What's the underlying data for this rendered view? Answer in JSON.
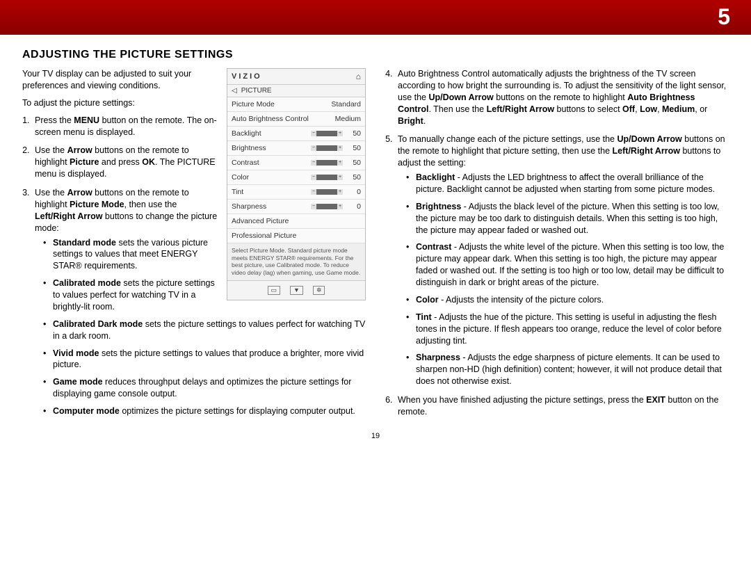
{
  "banner": {
    "chapter_number": "5"
  },
  "page_number": "19",
  "title": "ADJUSTING THE PICTURE SETTINGS",
  "left": {
    "intro": "Your TV display can be adjusted to suit your preferences and viewing conditions.",
    "lead": "To adjust the picture settings:",
    "step1": {
      "pre": "Press the ",
      "b1": "MENU",
      "post": " button on the remote. The on-screen menu is displayed."
    },
    "step2": {
      "pre": "Use the ",
      "b1": "Arrow",
      "mid": " buttons on the remote to highlight ",
      "b2": "Picture",
      "mid2": " and press ",
      "b3": "OK",
      "post": ". The PICTURE menu is displayed."
    },
    "step3": {
      "pre": "Use the ",
      "b1": "Arrow",
      "mid": " buttons on the remote to highlight ",
      "b2": "Picture Mode",
      "mid2": ", then use the ",
      "b3": "Left/Right Arrow",
      "post": " buttons to change the picture mode:"
    },
    "modes": {
      "standard": {
        "b": "Standard mode",
        "t": " sets the various picture settings to values that meet ENERGY STAR® requirements."
      },
      "calibrated": {
        "b": "Calibrated mode",
        "t": " sets the picture settings to values perfect for watching TV in a brightly-lit room."
      },
      "calibrated_dark": {
        "b": "Calibrated Dark mode",
        "t": " sets the picture settings to values perfect for watching TV in a dark room."
      },
      "vivid": {
        "b": "Vivid mode",
        "t": " sets the picture settings to values that produce a brighter, more vivid picture."
      },
      "game": {
        "b": "Game mode",
        "t": " reduces throughput delays and optimizes the picture settings for displaying game console output."
      },
      "computer": {
        "b": "Computer mode",
        "t": " optimizes the picture settings for displaying computer output."
      }
    }
  },
  "right": {
    "step4": {
      "t1": "Auto Brightness Control automatically adjusts the brightness of the TV screen according to how bright the surrounding is. To adjust the sensitivity of the light sensor, use the ",
      "b1": "Up/Down Arrow",
      "t2": " buttons on the remote to highlight ",
      "b2": "Auto Brightness Control",
      "t3": ". Then use the ",
      "b3": "Left/Right Arrow",
      "t4": " buttons to select ",
      "b4": "Off",
      "t5": ", ",
      "b5": "Low",
      "t6": ", ",
      "b6": "Medium",
      "t7": ", or ",
      "b7": "Bright",
      "t8": "."
    },
    "step5": {
      "t1": "To manually change each of the picture settings, use the ",
      "b1": "Up/Down Arrow",
      "t2": " buttons on the remote to highlight that picture setting, then use the ",
      "b2": "Left/Right Arrow",
      "t3": " buttons to adjust the setting:"
    },
    "settings": {
      "backlight": {
        "b": "Backlight",
        "t": " - Adjusts the LED brightness to affect the overall brilliance of the picture. Backlight cannot be adjusted when starting from some picture modes."
      },
      "brightness": {
        "b": "Brightness",
        "t": " - Adjusts the black level of the picture. When this setting is too low, the picture may be too dark to distinguish details. When this setting is too high, the picture may appear faded or washed out."
      },
      "contrast": {
        "b": "Contrast",
        "t": " - Adjusts the white level of the picture. When this setting is too low, the picture may appear dark. When this setting is too high, the picture may appear faded or washed out. If the setting is too high or too low, detail may be difficult to distinguish in dark or bright areas of the picture."
      },
      "color": {
        "b": "Color",
        "t": " - Adjusts the intensity of the picture colors."
      },
      "tint": {
        "b": "Tint",
        "t": " - Adjusts the hue of the picture. This setting is useful in adjusting the flesh tones in the picture. If flesh appears too orange, reduce the level of color before adjusting tint."
      },
      "sharpness": {
        "b": "Sharpness",
        "t": " - Adjusts the edge sharpness of picture elements. It can be used to sharpen non-HD (high definition) content; however, it will not produce detail that does not otherwise exist."
      }
    },
    "step6": {
      "t1": "When you have finished adjusting the picture settings, press the ",
      "b1": "EXIT",
      "t2": " button on the remote."
    }
  },
  "osd": {
    "logo": "VIZIO",
    "home_icon": "⌂",
    "back_icon": "◁",
    "section": "PICTURE",
    "rows": {
      "picture_mode": {
        "label": "Picture Mode",
        "value": "Standard"
      },
      "auto_brightness": {
        "label": "Auto Brightness Control",
        "value": "Medium"
      },
      "backlight": {
        "label": "Backlight",
        "value": "50",
        "fill_pct": 50
      },
      "brightness": {
        "label": "Brightness",
        "value": "50",
        "fill_pct": 50
      },
      "contrast": {
        "label": "Contrast",
        "value": "50",
        "fill_pct": 50
      },
      "color": {
        "label": "Color",
        "value": "50",
        "fill_pct": 50
      },
      "tint": {
        "label": "Tint",
        "value": "0",
        "fill_pct": 50
      },
      "sharpness": {
        "label": "Sharpness",
        "value": "0",
        "fill_pct": 0
      },
      "advanced": {
        "label": "Advanced Picture"
      },
      "professional": {
        "label": "Professional Picture"
      }
    },
    "help": "Select Picture Mode. Standard picture mode meets ENERGY STAR® requirements. For the best picture, use Calibrated mode. To reduce video delay (lag) when gaming, use Game mode.",
    "footer_icons": {
      "wide": "▭",
      "down": "▼",
      "gear": "✲"
    }
  },
  "colors": {
    "banner_top": "#b00000",
    "banner_bottom": "#8a0000",
    "osd_border": "#bbbbbb",
    "osd_bg": "#fafafa"
  }
}
